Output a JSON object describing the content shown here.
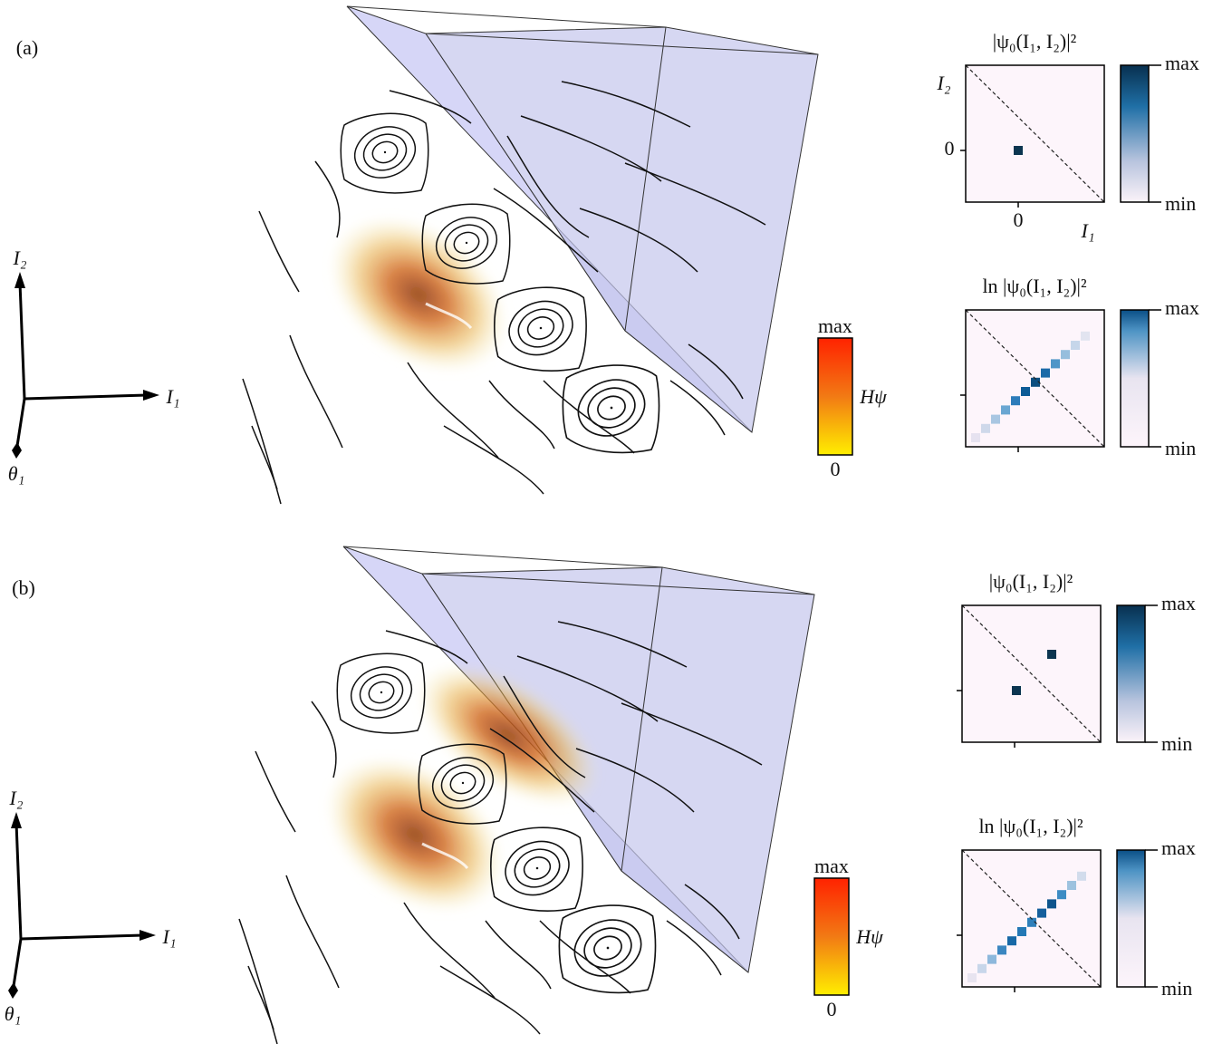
{
  "panels": [
    {
      "label": "(a)",
      "axes": {
        "i2": "I₂",
        "i1": "I₁",
        "theta": "θ₁"
      },
      "colorbar": {
        "max": "max",
        "min": "0",
        "label": "Hψ"
      },
      "density": {
        "title": "|ψ₀(I₁, I₂)|²",
        "y_axis": "I₂",
        "x_axis": "I₁",
        "y_tick": "0",
        "x_tick": "0",
        "max": "max",
        "min": "min"
      },
      "log_density": {
        "title": "ln |ψ₀(I₁, I₂)|²",
        "max": "max",
        "min": "min"
      }
    },
    {
      "label": "(b)",
      "axes": {
        "i2": "I₂",
        "i1": "I₁",
        "theta": "θ₁"
      },
      "colorbar": {
        "max": "max",
        "min": "0",
        "label": "Hψ"
      },
      "density": {
        "title": "|ψ₀(I₁, I₂)|²",
        "max": "max",
        "min": "min"
      },
      "log_density": {
        "title": "ln |ψ₀(I₁, I₂)|²",
        "max": "max",
        "min": "min"
      }
    }
  ]
}
